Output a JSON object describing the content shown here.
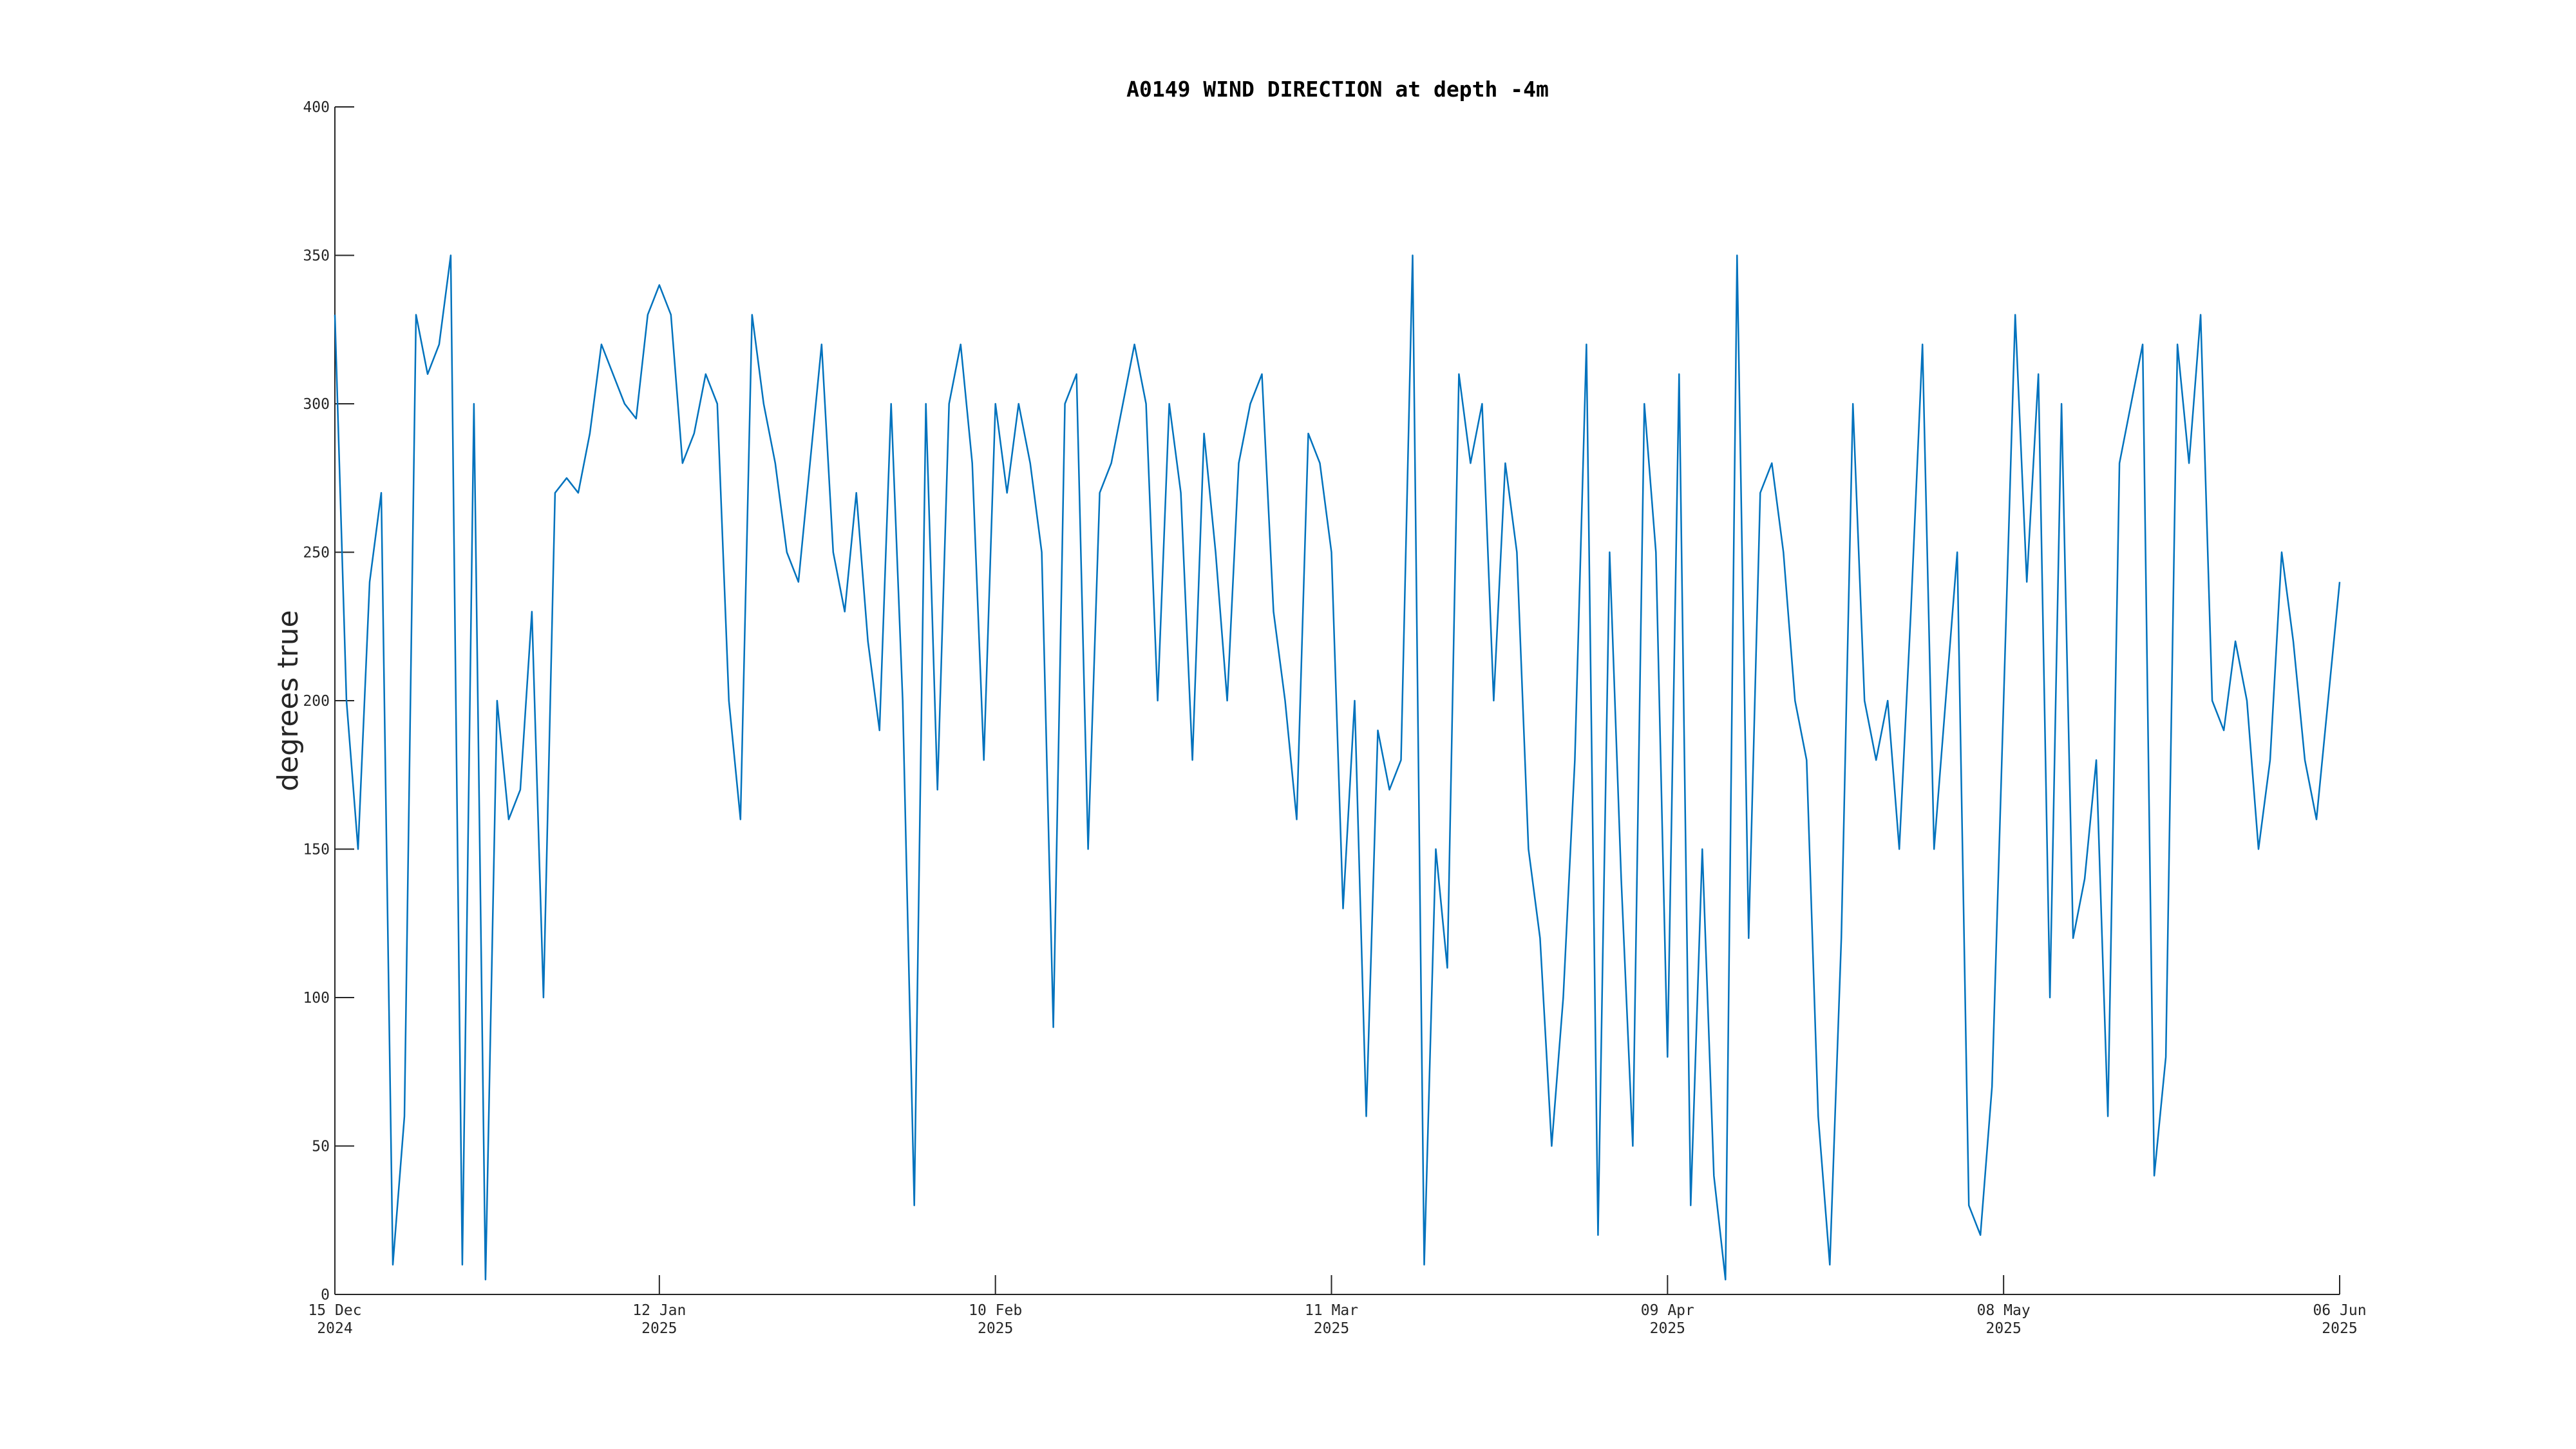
{
  "chart_data": {
    "type": "line",
    "title": "A0149 WIND DIRECTION at depth -4m",
    "ylabel": "degrees true",
    "color": "#0072bd",
    "xlim": [
      "2024-12-15",
      "2025-06-06"
    ],
    "xticks": [
      {
        "value": "2024-12-15",
        "label": [
          "15 Dec",
          "2024"
        ]
      },
      {
        "value": "2025-01-12",
        "label": [
          "12 Jan",
          "2025"
        ]
      },
      {
        "value": "2025-02-10",
        "label": [
          "10 Feb",
          "2025"
        ]
      },
      {
        "value": "2025-03-11",
        "label": [
          "11 Mar",
          "2025"
        ]
      },
      {
        "value": "2025-04-09",
        "label": [
          "09 Apr",
          "2025"
        ]
      },
      {
        "value": "2025-05-08",
        "label": [
          "08 May",
          "2025"
        ]
      },
      {
        "value": "2025-06-06",
        "label": [
          "06 Jun",
          "2025"
        ]
      }
    ],
    "ylim": [
      0,
      400
    ],
    "yticks": [
      0,
      50,
      100,
      150,
      200,
      250,
      300,
      350,
      400
    ],
    "grid": false,
    "x": [
      "2024-12-15",
      "2024-12-16",
      "2024-12-17",
      "2024-12-18",
      "2024-12-19",
      "2024-12-20",
      "2024-12-21",
      "2024-12-22",
      "2024-12-23",
      "2024-12-24",
      "2024-12-25",
      "2024-12-26",
      "2024-12-27",
      "2024-12-28",
      "2024-12-29",
      "2024-12-30",
      "2024-12-31",
      "2025-01-01",
      "2025-01-02",
      "2025-01-03",
      "2025-01-04",
      "2025-01-05",
      "2025-01-06",
      "2025-01-07",
      "2025-01-08",
      "2025-01-09",
      "2025-01-10",
      "2025-01-11",
      "2025-01-12",
      "2025-01-13",
      "2025-01-14",
      "2025-01-15",
      "2025-01-16",
      "2025-01-17",
      "2025-01-18",
      "2025-01-19",
      "2025-01-20",
      "2025-01-21",
      "2025-01-22",
      "2025-01-23",
      "2025-01-24",
      "2025-01-25",
      "2025-01-26",
      "2025-01-27",
      "2025-01-28",
      "2025-01-29",
      "2025-01-30",
      "2025-01-31",
      "2025-02-01",
      "2025-02-02",
      "2025-02-03",
      "2025-02-04",
      "2025-02-05",
      "2025-02-06",
      "2025-02-07",
      "2025-02-08",
      "2025-02-09",
      "2025-02-10",
      "2025-02-11",
      "2025-02-12",
      "2025-02-13",
      "2025-02-14",
      "2025-02-15",
      "2025-02-16",
      "2025-02-17",
      "2025-02-18",
      "2025-02-19",
      "2025-02-20",
      "2025-02-21",
      "2025-02-22",
      "2025-02-23",
      "2025-02-24",
      "2025-02-25",
      "2025-02-26",
      "2025-02-27",
      "2025-02-28",
      "2025-03-01",
      "2025-03-02",
      "2025-03-03",
      "2025-03-04",
      "2025-03-05",
      "2025-03-06",
      "2025-03-07",
      "2025-03-08",
      "2025-03-09",
      "2025-03-10",
      "2025-03-11",
      "2025-03-12",
      "2025-03-13",
      "2025-03-14",
      "2025-03-15",
      "2025-03-16",
      "2025-03-17",
      "2025-03-18",
      "2025-03-19",
      "2025-03-20",
      "2025-03-21",
      "2025-03-22",
      "2025-03-23",
      "2025-03-24",
      "2025-03-25",
      "2025-03-26",
      "2025-03-27",
      "2025-03-28",
      "2025-03-29",
      "2025-03-30",
      "2025-03-31",
      "2025-04-01",
      "2025-04-02",
      "2025-04-03",
      "2025-04-04",
      "2025-04-05",
      "2025-04-06",
      "2025-04-07",
      "2025-04-08",
      "2025-04-09",
      "2025-04-10",
      "2025-04-11",
      "2025-04-12",
      "2025-04-13",
      "2025-04-14",
      "2025-04-15",
      "2025-04-16",
      "2025-04-17",
      "2025-04-18",
      "2025-04-19",
      "2025-04-20",
      "2025-04-21",
      "2025-04-22",
      "2025-04-23",
      "2025-04-24",
      "2025-04-25",
      "2025-04-26",
      "2025-04-27",
      "2025-04-28",
      "2025-04-29",
      "2025-04-30",
      "2025-05-01",
      "2025-05-02",
      "2025-05-03",
      "2025-05-04",
      "2025-05-05",
      "2025-05-06",
      "2025-05-07",
      "2025-05-08",
      "2025-05-09",
      "2025-05-10",
      "2025-05-11",
      "2025-05-12",
      "2025-05-13",
      "2025-05-14",
      "2025-05-15",
      "2025-05-16",
      "2025-05-17",
      "2025-05-18",
      "2025-05-19",
      "2025-05-20",
      "2025-05-21",
      "2025-05-22",
      "2025-05-23",
      "2025-05-24",
      "2025-05-25",
      "2025-05-26",
      "2025-05-27",
      "2025-05-28",
      "2025-05-29",
      "2025-05-30",
      "2025-05-31",
      "2025-06-01",
      "2025-06-02",
      "2025-06-03",
      "2025-06-04",
      "2025-06-05",
      "2025-06-06"
    ],
    "values": [
      330,
      200,
      150,
      240,
      270,
      10,
      60,
      330,
      310,
      320,
      350,
      10,
      300,
      5,
      200,
      160,
      170,
      230,
      100,
      270,
      275,
      270,
      290,
      320,
      310,
      300,
      295,
      330,
      340,
      330,
      280,
      290,
      310,
      300,
      200,
      160,
      330,
      300,
      280,
      250,
      240,
      280,
      320,
      250,
      230,
      270,
      220,
      190,
      300,
      200,
      30,
      300,
      170,
      300,
      320,
      280,
      180,
      300,
      270,
      300,
      280,
      250,
      90,
      300,
      310,
      150,
      270,
      280,
      300,
      320,
      300,
      200,
      300,
      270,
      180,
      290,
      250,
      200,
      280,
      300,
      310,
      230,
      200,
      160,
      290,
      280,
      250,
      130,
      200,
      60,
      190,
      170,
      180,
      350,
      10,
      150,
      110,
      310,
      280,
      300,
      200,
      280,
      250,
      150,
      120,
      50,
      100,
      180,
      320,
      20,
      250,
      140,
      50,
      300,
      250,
      80,
      310,
      30,
      150,
      40,
      5,
      350,
      120,
      270,
      280,
      250,
      200,
      180,
      60,
      10,
      120,
      300,
      200,
      180,
      200,
      150,
      230,
      320,
      150,
      200,
      250,
      30,
      20,
      70,
      200,
      330,
      240,
      310,
      100,
      300,
      120,
      140,
      180,
      60,
      280,
      300,
      320,
      40,
      80,
      320,
      280,
      330,
      200,
      190,
      220,
      200,
      150,
      180,
      250,
      220,
      180,
      160,
      200,
      240
    ]
  }
}
